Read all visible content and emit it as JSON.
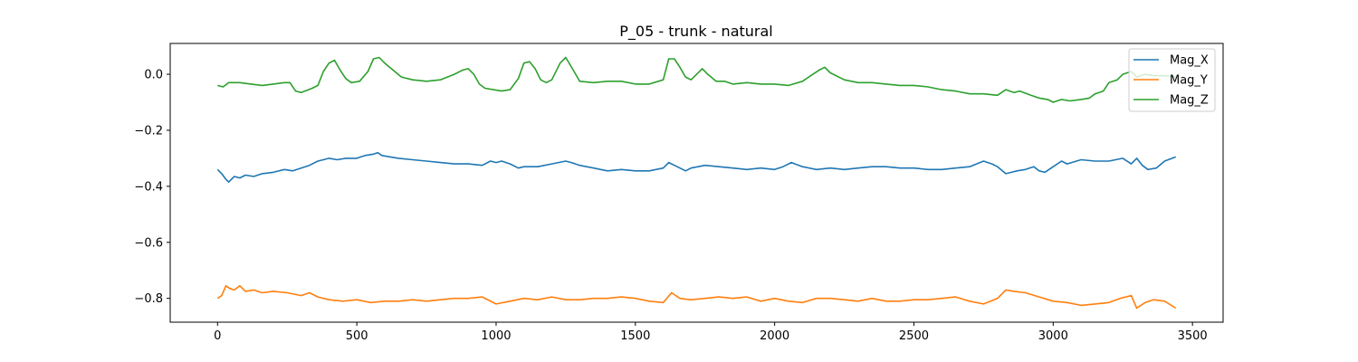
{
  "chart_data": {
    "type": "line",
    "title": "P_05 - trunk - natural",
    "xlabel": "",
    "ylabel": "",
    "xlim": [
      -170,
      3610
    ],
    "ylim": [
      -0.885,
      0.11
    ],
    "xticks": [
      0,
      500,
      1000,
      1500,
      2000,
      2500,
      3000,
      3500
    ],
    "xtick_labels": [
      "0",
      "500",
      "1000",
      "1500",
      "2000",
      "2500",
      "3000",
      "3500"
    ],
    "yticks": [
      0.0,
      -0.2,
      -0.4,
      -0.6,
      -0.8
    ],
    "ytick_labels": [
      "0.0",
      "−0.2",
      "−0.4",
      "−0.6",
      "−0.8"
    ],
    "grid": false,
    "legend": {
      "location": "upper right"
    },
    "series": [
      {
        "name": "Mag_X",
        "color": "#1f77b4",
        "x": [
          0,
          15,
          30,
          40,
          60,
          80,
          100,
          130,
          160,
          200,
          240,
          270,
          300,
          330,
          360,
          380,
          400,
          430,
          460,
          500,
          530,
          560,
          575,
          590,
          620,
          650,
          700,
          750,
          800,
          850,
          900,
          950,
          980,
          1000,
          1020,
          1050,
          1080,
          1100,
          1150,
          1200,
          1250,
          1270,
          1300,
          1350,
          1400,
          1450,
          1500,
          1550,
          1600,
          1620,
          1650,
          1680,
          1700,
          1750,
          1800,
          1850,
          1900,
          1950,
          2000,
          2030,
          2060,
          2100,
          2150,
          2200,
          2250,
          2300,
          2350,
          2400,
          2450,
          2500,
          2550,
          2600,
          2650,
          2700,
          2750,
          2780,
          2800,
          2830,
          2850,
          2870,
          2900,
          2930,
          2950,
          2970,
          3000,
          3030,
          3050,
          3100,
          3150,
          3200,
          3250,
          3280,
          3300,
          3320,
          3340,
          3370,
          3400,
          3440
        ],
        "y": [
          -0.34,
          -0.355,
          -0.375,
          -0.385,
          -0.365,
          -0.37,
          -0.36,
          -0.365,
          -0.355,
          -0.35,
          -0.34,
          -0.345,
          -0.335,
          -0.325,
          -0.31,
          -0.305,
          -0.3,
          -0.305,
          -0.3,
          -0.3,
          -0.29,
          -0.285,
          -0.28,
          -0.29,
          -0.295,
          -0.3,
          -0.305,
          -0.31,
          -0.315,
          -0.32,
          -0.32,
          -0.325,
          -0.31,
          -0.315,
          -0.31,
          -0.32,
          -0.335,
          -0.33,
          -0.33,
          -0.32,
          -0.31,
          -0.315,
          -0.325,
          -0.335,
          -0.345,
          -0.34,
          -0.345,
          -0.345,
          -0.335,
          -0.315,
          -0.33,
          -0.345,
          -0.335,
          -0.325,
          -0.33,
          -0.335,
          -0.34,
          -0.335,
          -0.34,
          -0.33,
          -0.315,
          -0.33,
          -0.34,
          -0.335,
          -0.34,
          -0.335,
          -0.33,
          -0.33,
          -0.335,
          -0.335,
          -0.34,
          -0.34,
          -0.335,
          -0.33,
          -0.31,
          -0.32,
          -0.33,
          -0.355,
          -0.35,
          -0.345,
          -0.34,
          -0.33,
          -0.345,
          -0.35,
          -0.33,
          -0.31,
          -0.32,
          -0.305,
          -0.31,
          -0.31,
          -0.3,
          -0.32,
          -0.3,
          -0.325,
          -0.34,
          -0.335,
          -0.31,
          -0.295
        ]
      },
      {
        "name": "Mag_Y",
        "color": "#ff7f0e",
        "x": [
          0,
          15,
          30,
          45,
          60,
          80,
          100,
          130,
          160,
          200,
          250,
          300,
          330,
          360,
          400,
          450,
          500,
          550,
          600,
          650,
          700,
          750,
          800,
          850,
          900,
          950,
          1000,
          1050,
          1100,
          1150,
          1200,
          1250,
          1300,
          1350,
          1400,
          1450,
          1500,
          1550,
          1600,
          1630,
          1660,
          1700,
          1750,
          1800,
          1850,
          1900,
          1950,
          2000,
          2050,
          2100,
          2150,
          2200,
          2250,
          2300,
          2350,
          2400,
          2450,
          2500,
          2550,
          2600,
          2650,
          2700,
          2750,
          2800,
          2830,
          2860,
          2900,
          2950,
          3000,
          3050,
          3100,
          3150,
          3200,
          3240,
          3280,
          3300,
          3330,
          3360,
          3400,
          3440
        ],
        "y": [
          -0.8,
          -0.79,
          -0.755,
          -0.765,
          -0.77,
          -0.755,
          -0.775,
          -0.77,
          -0.78,
          -0.775,
          -0.78,
          -0.79,
          -0.78,
          -0.795,
          -0.805,
          -0.81,
          -0.805,
          -0.815,
          -0.81,
          -0.81,
          -0.805,
          -0.81,
          -0.805,
          -0.8,
          -0.8,
          -0.795,
          -0.82,
          -0.81,
          -0.8,
          -0.805,
          -0.795,
          -0.805,
          -0.805,
          -0.8,
          -0.8,
          -0.795,
          -0.8,
          -0.81,
          -0.815,
          -0.78,
          -0.8,
          -0.805,
          -0.8,
          -0.795,
          -0.8,
          -0.795,
          -0.81,
          -0.8,
          -0.81,
          -0.815,
          -0.8,
          -0.8,
          -0.805,
          -0.81,
          -0.8,
          -0.81,
          -0.81,
          -0.805,
          -0.805,
          -0.8,
          -0.795,
          -0.81,
          -0.82,
          -0.8,
          -0.77,
          -0.775,
          -0.78,
          -0.795,
          -0.81,
          -0.815,
          -0.825,
          -0.82,
          -0.815,
          -0.8,
          -0.79,
          -0.835,
          -0.815,
          -0.805,
          -0.81,
          -0.835
        ]
      },
      {
        "name": "Mag_Z",
        "color": "#2ca02c",
        "x": [
          0,
          20,
          40,
          80,
          120,
          160,
          200,
          240,
          260,
          280,
          300,
          340,
          360,
          380,
          400,
          420,
          440,
          460,
          480,
          510,
          540,
          560,
          580,
          600,
          630,
          660,
          700,
          750,
          800,
          850,
          880,
          900,
          920,
          940,
          960,
          990,
          1020,
          1050,
          1080,
          1100,
          1120,
          1140,
          1160,
          1180,
          1200,
          1230,
          1250,
          1280,
          1300,
          1350,
          1400,
          1450,
          1500,
          1550,
          1600,
          1620,
          1640,
          1660,
          1680,
          1700,
          1720,
          1740,
          1760,
          1790,
          1820,
          1850,
          1900,
          1950,
          2000,
          2050,
          2100,
          2130,
          2160,
          2180,
          2200,
          2250,
          2300,
          2350,
          2400,
          2450,
          2500,
          2550,
          2600,
          2650,
          2700,
          2750,
          2800,
          2830,
          2860,
          2880,
          2920,
          2950,
          2980,
          3000,
          3030,
          3060,
          3100,
          3130,
          3150,
          3180,
          3200,
          3230,
          3250,
          3280,
          3300,
          3330,
          3360,
          3400,
          3440
        ],
        "y": [
          -0.04,
          -0.045,
          -0.03,
          -0.03,
          -0.035,
          -0.04,
          -0.035,
          -0.03,
          -0.03,
          -0.06,
          -0.065,
          -0.05,
          -0.04,
          0.01,
          0.04,
          0.05,
          0.015,
          -0.015,
          -0.03,
          -0.025,
          0.01,
          0.055,
          0.06,
          0.04,
          0.015,
          -0.01,
          -0.02,
          -0.025,
          -0.02,
          0.0,
          0.015,
          0.02,
          0.0,
          -0.035,
          -0.05,
          -0.055,
          -0.06,
          -0.055,
          -0.015,
          0.04,
          0.045,
          0.02,
          -0.02,
          -0.03,
          -0.02,
          0.04,
          0.06,
          0.01,
          -0.025,
          -0.03,
          -0.025,
          -0.025,
          -0.035,
          -0.035,
          -0.02,
          0.055,
          0.055,
          0.025,
          -0.01,
          -0.02,
          0.0,
          0.02,
          0.0,
          -0.025,
          -0.025,
          -0.035,
          -0.03,
          -0.035,
          -0.035,
          -0.04,
          -0.025,
          -0.005,
          0.015,
          0.025,
          0.005,
          -0.02,
          -0.03,
          -0.03,
          -0.035,
          -0.04,
          -0.04,
          -0.045,
          -0.055,
          -0.06,
          -0.07,
          -0.07,
          -0.075,
          -0.055,
          -0.065,
          -0.06,
          -0.075,
          -0.085,
          -0.09,
          -0.1,
          -0.09,
          -0.095,
          -0.09,
          -0.085,
          -0.07,
          -0.06,
          -0.03,
          -0.02,
          0.0,
          0.01,
          -0.01,
          0.0,
          -0.005,
          -0.005,
          -0.01
        ]
      }
    ]
  }
}
